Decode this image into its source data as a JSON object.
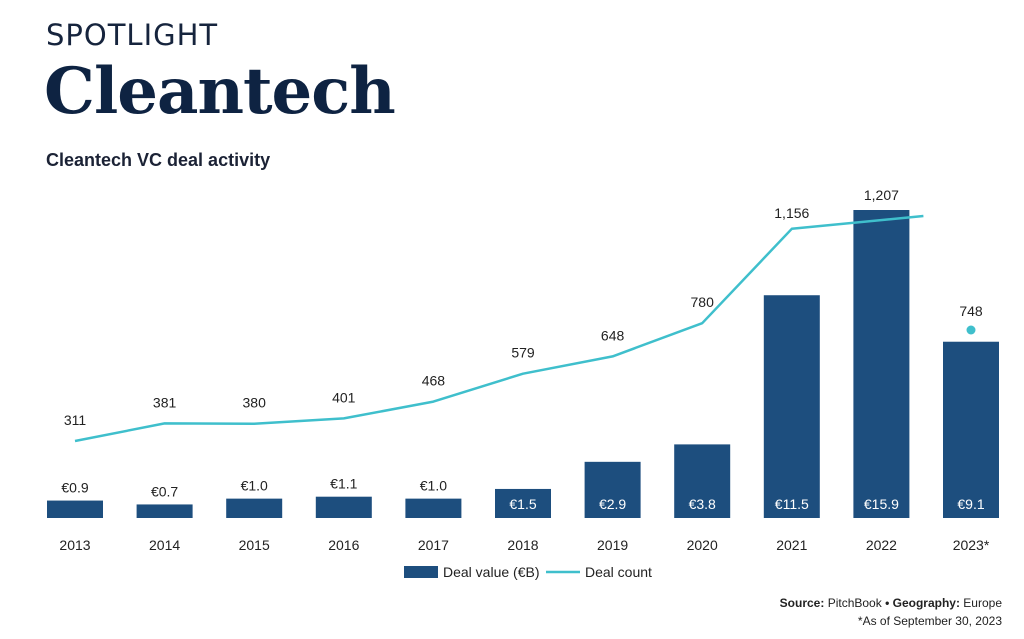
{
  "header": {
    "eyebrow": "SPOTLIGHT",
    "title": "Cleantech"
  },
  "chart_data": {
    "type": "bar",
    "title": "Cleantech VC deal activity",
    "categories": [
      "2013",
      "2014",
      "2015",
      "2016",
      "2017",
      "2018",
      "2019",
      "2020",
      "2021",
      "2022",
      "2023*"
    ],
    "series": [
      {
        "name": "Deal value (€B)",
        "type": "bar",
        "color": "#1d4e7e",
        "values": [
          0.9,
          0.7,
          1.0,
          1.1,
          1.0,
          1.5,
          2.9,
          3.8,
          11.5,
          15.9,
          9.1
        ],
        "labels": [
          "€0.9",
          "€0.7",
          "€1.0",
          "€1.1",
          "€1.0",
          "€1.5",
          "€2.9",
          "€3.8",
          "€11.5",
          "€15.9",
          "€9.1"
        ]
      },
      {
        "name": "Deal count",
        "type": "line",
        "color": "#3fbfcc",
        "values": [
          311,
          381,
          380,
          401,
          468,
          579,
          648,
          780,
          1156,
          1207,
          748
        ],
        "labels": [
          "311",
          "381",
          "380",
          "401",
          "468",
          "579",
          "648",
          "780",
          "1,156",
          "1,207",
          "748"
        ],
        "line_break_before_index": 10
      }
    ],
    "xlabel": "",
    "ylabel": "",
    "ylim_left": [
      0,
      16.5
    ],
    "ylim_right": [
      0,
      1700
    ],
    "grid": false,
    "legend": "bottom-center"
  },
  "footer": {
    "source_label": "Source:",
    "source_value": "PitchBook",
    "separator": "•",
    "geo_label": "Geography:",
    "geo_value": "Europe",
    "note": "*As of September 30, 2023"
  }
}
